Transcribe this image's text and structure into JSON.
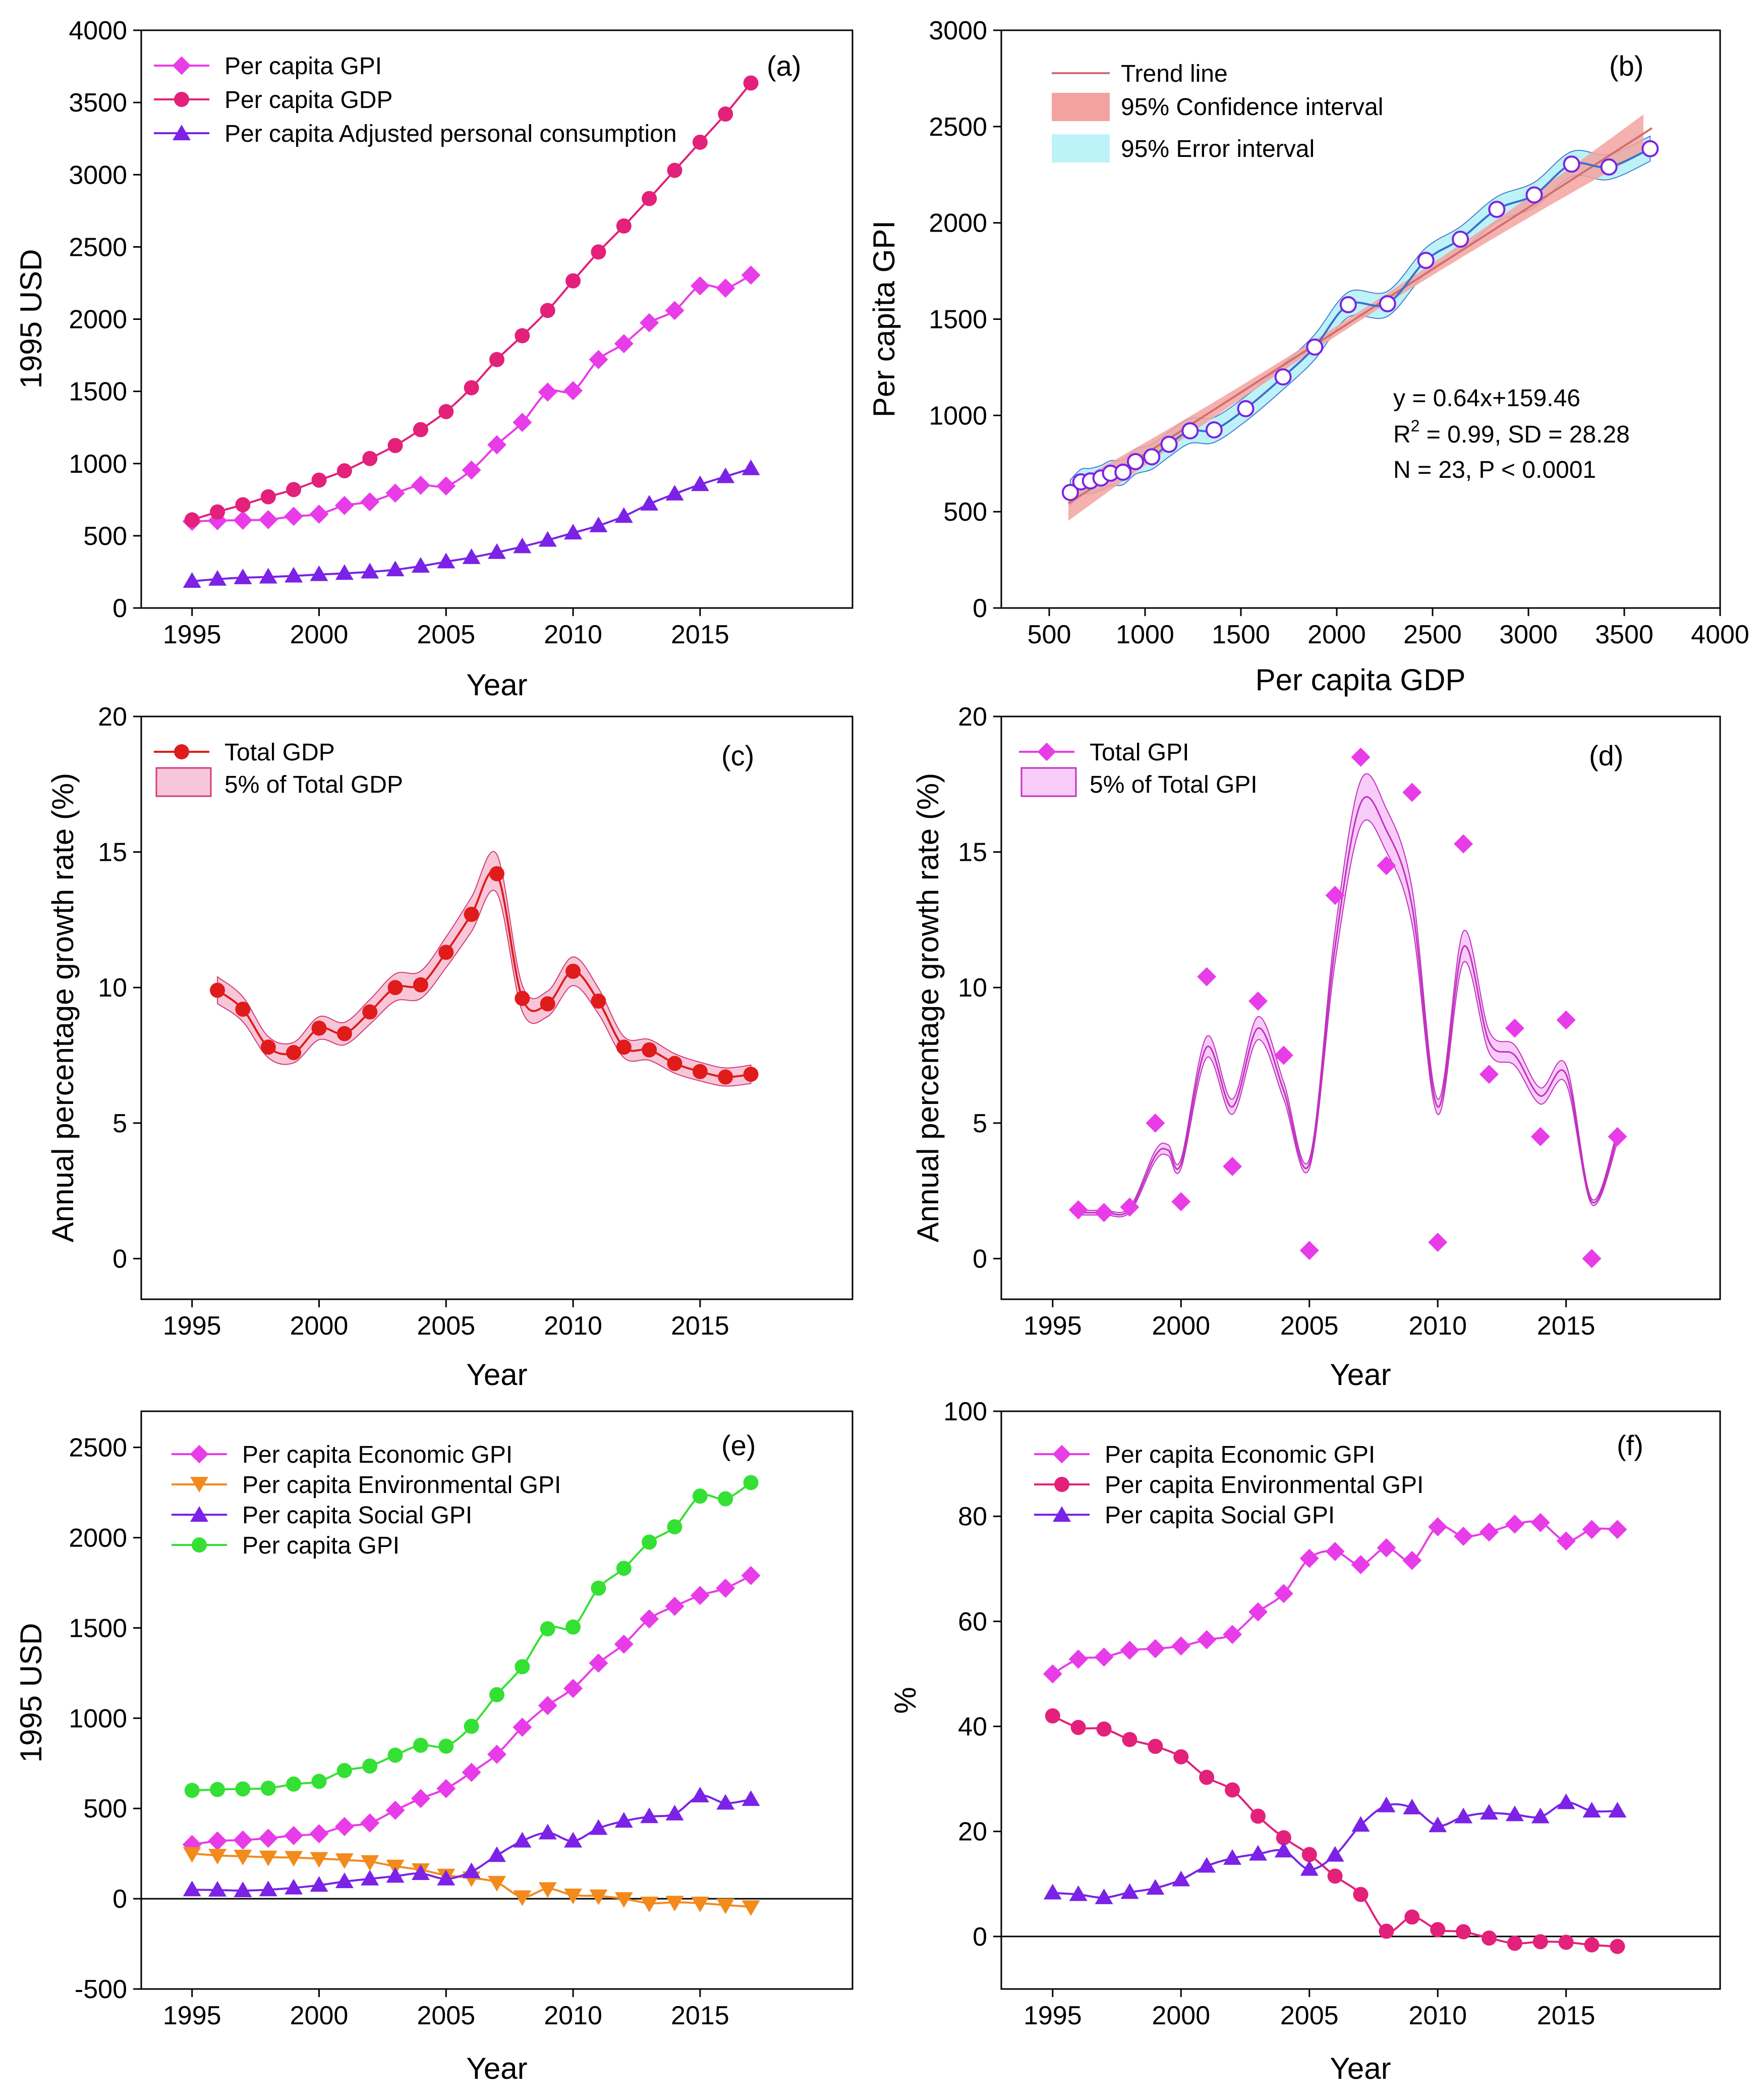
{
  "chart_data": [
    {
      "panel": "(a)",
      "type": "line",
      "xlabel": "Year",
      "ylabel": "1995 USD",
      "xlim": [
        1993,
        2021
      ],
      "ylim": [
        0,
        4000
      ],
      "xticks": [
        1995,
        2000,
        2005,
        2010,
        2015
      ],
      "yticks": [
        0,
        500,
        1000,
        1500,
        2000,
        2500,
        3000,
        3500,
        4000
      ],
      "legend_position": "top-left",
      "x": [
        1995,
        1996,
        1997,
        1998,
        1999,
        2000,
        2001,
        2002,
        2003,
        2004,
        2005,
        2006,
        2007,
        2008,
        2009,
        2010,
        2011,
        2012,
        2013,
        2014,
        2015,
        2016,
        2017
      ],
      "series": [
        {
          "name": "Per capita GPI",
          "marker": "diamond",
          "color": "#e83ce8",
          "values": [
            600,
            605,
            608,
            612,
            635,
            650,
            710,
            735,
            795,
            850,
            845,
            955,
            1130,
            1285,
            1495,
            1505,
            1720,
            1830,
            1975,
            2060,
            2230,
            2215,
            2305
          ]
        },
        {
          "name": "Per capita GDP",
          "marker": "circle",
          "color": "#e3207a",
          "values": [
            610,
            665,
            715,
            770,
            820,
            885,
            950,
            1035,
            1125,
            1235,
            1360,
            1525,
            1720,
            1885,
            2060,
            2265,
            2465,
            2645,
            2835,
            3030,
            3225,
            3420,
            3635
          ]
        },
        {
          "name": "Per capita Adjusted personal consumption",
          "marker": "triangle",
          "color": "#7b22e6",
          "values": [
            185,
            200,
            210,
            215,
            222,
            232,
            240,
            250,
            265,
            290,
            320,
            350,
            385,
            425,
            470,
            520,
            570,
            635,
            720,
            790,
            855,
            910,
            965
          ]
        }
      ]
    },
    {
      "panel": "(b)",
      "type": "scatter",
      "xlabel": "Per capita GDP",
      "ylabel": "Per capita GPI",
      "xlim": [
        250,
        4000
      ],
      "ylim": [
        0,
        3000
      ],
      "xticks": [
        500,
        1000,
        1500,
        2000,
        2500,
        3000,
        3500,
        4000
      ],
      "yticks": [
        0,
        500,
        1000,
        1500,
        2000,
        2500,
        3000
      ],
      "legend": [
        "Trend line",
        "95% Confidence interval",
        "95% Error interval"
      ],
      "legend_colors": [
        "#d26e6e",
        "#f2a3a0",
        "#bdf3f8"
      ],
      "annotation": {
        "line1": "y = 0.64x+159.46",
        "line2_a": "R",
        "line2_sup": "2",
        "line2_b": " = 0.99, SD = 28.28",
        "line3": "N = 23, P < 0.0001"
      },
      "trend": {
        "slope": 0.64,
        "intercept": 159.46
      },
      "x": [
        610,
        665,
        715,
        770,
        820,
        885,
        950,
        1035,
        1125,
        1235,
        1360,
        1525,
        1720,
        1885,
        2060,
        2265,
        2465,
        2645,
        2835,
        3030,
        3225,
        3420,
        3635
      ],
      "y": [
        600,
        655,
        660,
        675,
        700,
        705,
        760,
        785,
        850,
        920,
        925,
        1035,
        1200,
        1355,
        1575,
        1580,
        1805,
        1915,
        2070,
        2145,
        2305,
        2290,
        2385
      ]
    },
    {
      "panel": "(c)",
      "type": "line",
      "xlabel": "Year",
      "ylabel": "Annual percentage growth rate  (%)",
      "xlim": [
        1993,
        2021
      ],
      "ylim": [
        -1.5,
        20
      ],
      "xticks": [
        1995,
        2000,
        2005,
        2010,
        2015
      ],
      "yticks": [
        0,
        5,
        10,
        15,
        20
      ],
      "legend": [
        "Total GDP",
        "5% of Total GDP"
      ],
      "legend_position": "top-left",
      "x": [
        1996,
        1997,
        1998,
        1999,
        2000,
        2001,
        2002,
        2003,
        2004,
        2005,
        2006,
        2007,
        2008,
        2009,
        2010,
        2011,
        2012,
        2013,
        2014,
        2015,
        2016,
        2017
      ],
      "series": [
        {
          "name": "Total GDP",
          "marker": "circle",
          "color": "#e01b1b",
          "values": [
            9.9,
            9.2,
            7.8,
            7.6,
            8.5,
            8.3,
            9.1,
            10.0,
            10.1,
            11.3,
            12.7,
            14.2,
            9.6,
            9.4,
            10.6,
            9.5,
            7.8,
            7.7,
            7.2,
            6.9,
            6.7,
            6.8
          ]
        }
      ],
      "band_fraction": 0.05
    },
    {
      "panel": "(d)",
      "type": "line",
      "xlabel": "Year",
      "ylabel": "Annual percentage growth rate  (%)",
      "xlim": [
        1993,
        2021
      ],
      "ylim": [
        -1.5,
        20
      ],
      "xticks": [
        1995,
        2000,
        2005,
        2010,
        2015
      ],
      "yticks": [
        0,
        5,
        10,
        15,
        20
      ],
      "legend": [
        "Total GPI",
        "5% of Total GPI"
      ],
      "legend_position": "top-left",
      "x": [
        1996,
        1997,
        1998,
        1999,
        2000,
        2001,
        2002,
        2003,
        2004,
        2005,
        2006,
        2007,
        2008,
        2009,
        2010,
        2011,
        2012,
        2013,
        2014,
        2015,
        2016,
        2017
      ],
      "series": [
        {
          "name": "Total GPI",
          "marker": "diamond",
          "color": "#e83ce8",
          "values": [
            1.8,
            1.7,
            1.9,
            5.0,
            2.1,
            10.4,
            3.4,
            9.5,
            7.5,
            0.3,
            13.4,
            18.5,
            14.5,
            17.2,
            0.6,
            15.3,
            6.8,
            8.5,
            4.5,
            8.8,
            0.0,
            4.5
          ]
        }
      ],
      "smooth_curve": {
        "x": [
          1996,
          1997,
          1998,
          1999,
          1999.5,
          2000,
          2001,
          2002,
          2003,
          2004,
          2005,
          2006,
          2007,
          2008,
          2009,
          2010,
          2011,
          2012,
          2013,
          2014,
          2015,
          2016,
          2017
        ],
        "y": [
          1.7,
          1.7,
          1.8,
          3.8,
          4.0,
          3.5,
          7.8,
          5.6,
          8.5,
          6.2,
          3.5,
          11.5,
          16.8,
          15.8,
          13.0,
          5.6,
          11.5,
          8.0,
          7.5,
          6.0,
          6.8,
          2.1,
          4.5
        ]
      },
      "band_fraction": 0.05
    },
    {
      "panel": "(e)",
      "type": "line",
      "xlabel": "Year",
      "ylabel": "1995 USD",
      "xlim": [
        1993,
        2021
      ],
      "ylim": [
        -500,
        2700
      ],
      "xticks": [
        1995,
        2000,
        2005,
        2010,
        2015
      ],
      "yticks": [
        -500,
        0,
        500,
        1000,
        1500,
        2000,
        2500
      ],
      "legend_position": "top-left",
      "x": [
        1995,
        1996,
        1997,
        1998,
        1999,
        2000,
        2001,
        2002,
        2003,
        2004,
        2005,
        2006,
        2007,
        2008,
        2009,
        2010,
        2011,
        2012,
        2013,
        2014,
        2015,
        2016,
        2017
      ],
      "series": [
        {
          "name": "Per capita Economic GPI",
          "marker": "diamond",
          "color": "#e83ce8",
          "values": [
            300,
            320,
            325,
            335,
            350,
            360,
            400,
            420,
            490,
            555,
            610,
            700,
            800,
            950,
            1070,
            1165,
            1305,
            1410,
            1550,
            1620,
            1680,
            1720,
            1790
          ]
        },
        {
          "name": "Per capita Environmental GPI",
          "marker": "triangle-down",
          "color": "#f28a1c",
          "values": [
            250,
            240,
            235,
            230,
            228,
            222,
            215,
            205,
            180,
            160,
            130,
            115,
            90,
            10,
            55,
            20,
            15,
            0,
            -25,
            -20,
            -25,
            -35,
            -45
          ]
        },
        {
          "name": "Per capita Social GPI",
          "marker": "triangle",
          "color": "#7b22e6",
          "values": [
            50,
            48,
            45,
            50,
            60,
            75,
            95,
            110,
            125,
            140,
            110,
            150,
            240,
            320,
            365,
            320,
            390,
            430,
            455,
            470,
            570,
            530,
            550
          ]
        },
        {
          "name": "Per capita GPI",
          "marker": "circle",
          "color": "#34e034",
          "values": [
            600,
            605,
            608,
            612,
            635,
            650,
            710,
            735,
            795,
            850,
            845,
            955,
            1130,
            1285,
            1495,
            1505,
            1720,
            1830,
            1975,
            2060,
            2230,
            2215,
            2305
          ]
        }
      ]
    },
    {
      "panel": "(f)",
      "type": "line",
      "xlabel": "Year",
      "ylabel": "%",
      "xlim": [
        1993,
        2021
      ],
      "ylim": [
        -10,
        100
      ],
      "xticks": [
        1995,
        2000,
        2005,
        2010,
        2015
      ],
      "yticks": [
        0,
        20,
        40,
        60,
        80,
        100
      ],
      "legend_position": "top-left",
      "x": [
        1995,
        1996,
        1997,
        1998,
        1999,
        2000,
        2001,
        2002,
        2003,
        2004,
        2005,
        2006,
        2007,
        2008,
        2009,
        2010,
        2011,
        2012,
        2013,
        2014,
        2015,
        2016,
        2017
      ],
      "series": [
        {
          "name": "Per capita Economic GPI",
          "marker": "diamond",
          "color": "#e83ce8",
          "values": [
            50,
            52.8,
            53.2,
            54.5,
            54.8,
            55.3,
            56.5,
            57.5,
            61.8,
            65.3,
            72.0,
            73.3,
            70.8,
            74.0,
            71.6,
            78.0,
            76.2,
            77.0,
            78.5,
            78.8,
            75.3,
            77.5,
            77.5
          ]
        },
        {
          "name": "Per capita Environmental GPI",
          "marker": "circle",
          "color": "#e3207a",
          "values": [
            42,
            39.8,
            39.5,
            37.5,
            36.2,
            34.2,
            30.3,
            27.9,
            22.9,
            18.8,
            15.6,
            11.5,
            8.0,
            1.0,
            3.7,
            1.3,
            0.9,
            -0.3,
            -1.3,
            -1.0,
            -1.1,
            -1.6,
            -1.9
          ]
        },
        {
          "name": "Per capita Social GPI",
          "marker": "triangle",
          "color": "#7b22e6",
          "values": [
            8.3,
            8.0,
            7.4,
            8.4,
            9.2,
            10.8,
            13.4,
            14.9,
            15.7,
            16.3,
            12.8,
            15.5,
            21.2,
            24.9,
            24.5,
            21.1,
            22.8,
            23.5,
            23.2,
            22.8,
            25.5,
            23.9,
            23.9
          ]
        }
      ]
    }
  ]
}
